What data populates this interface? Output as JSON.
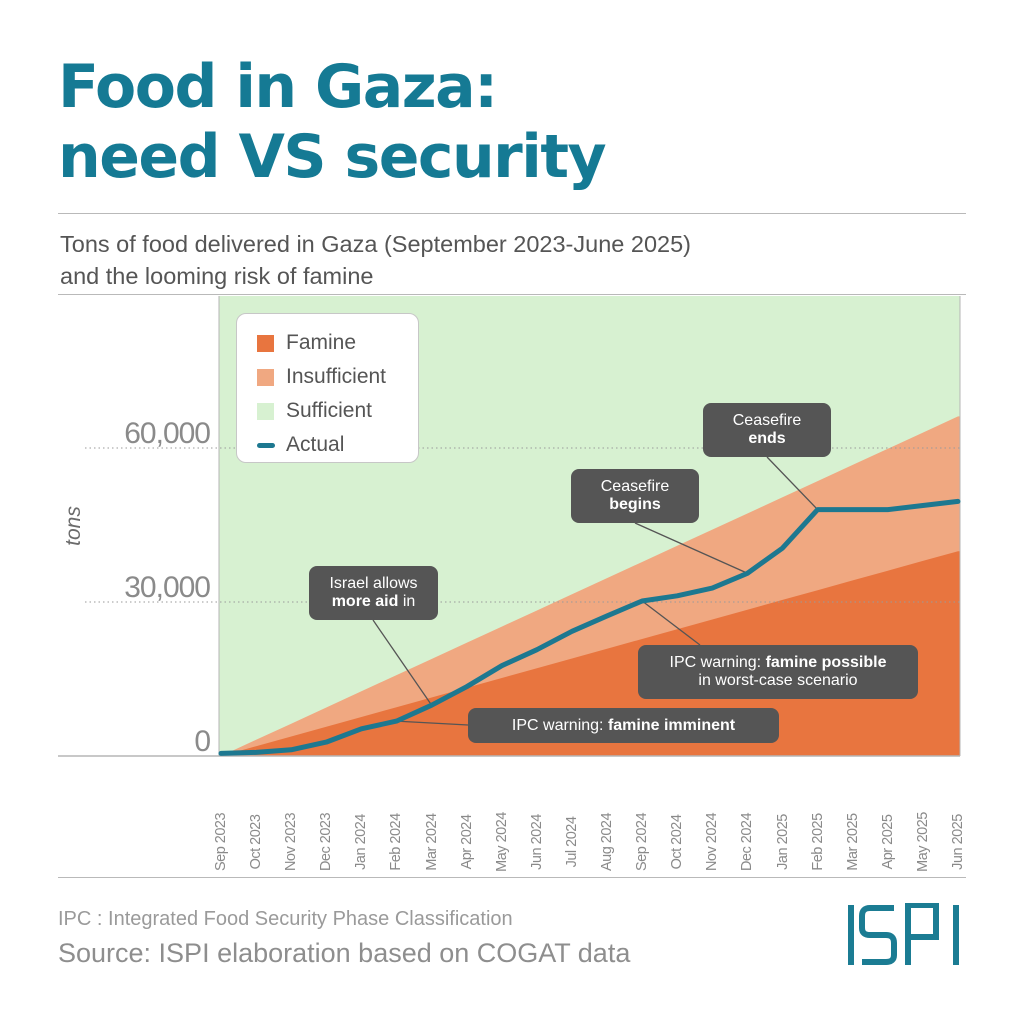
{
  "header": {
    "title_line1": "Food in Gaza:",
    "title_line2": "need VS security",
    "subtitle_line1": "Tons of food delivered in Gaza (September 2023-June 2025)",
    "subtitle_line2": "and the looming risk of famine"
  },
  "colors": {
    "title": "#157a94",
    "famine": "#e8753f",
    "insufficient": "#f0a881",
    "sufficient": "#d7f1d1",
    "actual": "#1d7890",
    "callout": "#555555",
    "logo": "#1b7c93"
  },
  "chart_data": {
    "type": "area",
    "x": [
      "Sep 2023",
      "Oct 2023",
      "Nov 2023",
      "Dec 2023",
      "Jan 2024",
      "Feb 2024",
      "Mar 2024",
      "Apr 2024",
      "May 2024",
      "Jun 2024",
      "Jul 2024",
      "Aug 2024",
      "Sep 2024",
      "Oct 2024",
      "Nov 2024",
      "Dec 2024",
      "Jan 2025",
      "Feb 2025",
      "Mar 2025",
      "Apr 2025",
      "May 2025",
      "Jun 2025"
    ],
    "ylabel": "tons",
    "ylim": [
      0,
      80000
    ],
    "yticks": [
      0,
      30000,
      60000
    ],
    "ytick_labels": [
      "0",
      "30,000",
      "60,000"
    ],
    "grid": "dotted horizontal at ticks",
    "legend_position": "top-left",
    "famine_upper": [
      0,
      1900,
      3800,
      5700,
      7600,
      9500,
      11400,
      13300,
      15200,
      17100,
      19000,
      20900,
      22800,
      24700,
      26600,
      28500,
      30400,
      32300,
      34200,
      36100,
      38000,
      39900
    ],
    "insufficient_upper": [
      0,
      3150,
      6300,
      9450,
      12600,
      15750,
      18900,
      22050,
      25200,
      28350,
      31500,
      34650,
      37800,
      40950,
      44100,
      47250,
      50400,
      53550,
      56700,
      59850,
      63000,
      66150
    ],
    "series": [
      {
        "name": "Famine"
      },
      {
        "name": "Insufficient"
      },
      {
        "name": "Sufficient"
      },
      {
        "name": "Actual",
        "values": [
          500,
          700,
          1200,
          2700,
          5300,
          6800,
          9900,
          13500,
          17600,
          20700,
          24300,
          27300,
          30200,
          31200,
          32700,
          35600,
          40500,
          48000,
          48000,
          48000,
          48800,
          49600
        ]
      }
    ],
    "annotations": [
      {
        "id": "israel-more-aid",
        "pre": "Israel allows",
        "bold": "more aid",
        "post": " in",
        "x": "Mar 2024"
      },
      {
        "id": "ipc-imminent",
        "pre": "IPC warning: ",
        "bold": "famine imminent",
        "post": "",
        "x": "Feb 2024"
      },
      {
        "id": "ceasefire-begins",
        "pre": "Ceasefire",
        "bold": "begins",
        "post": "",
        "x": "Dec 2024"
      },
      {
        "id": "ipc-possible",
        "pre": "IPC warning: ",
        "bold": "famine possible",
        "post": "in worst-case scenario",
        "x": "Sep 2024"
      },
      {
        "id": "ceasefire-ends",
        "pre": "Ceasefire",
        "bold": "ends",
        "post": "",
        "x": "Feb 2025"
      }
    ]
  },
  "footer": {
    "note": "IPC : Integrated Food Security Phase Classification",
    "source": "Source: ISPI elaboration based on COGAT data",
    "logo_text": "ISPI"
  }
}
